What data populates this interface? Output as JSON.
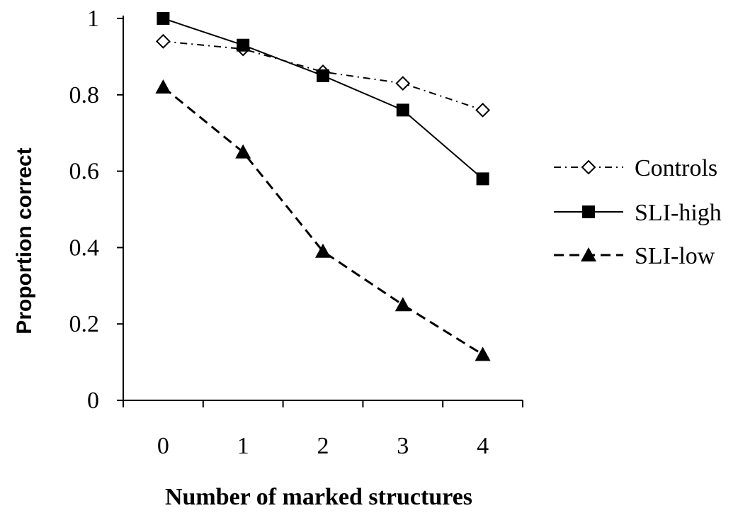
{
  "chart_data": {
    "type": "line",
    "title": "",
    "xlabel": "Number of marked structures",
    "ylabel": "Proportion correct",
    "categories": [
      "0",
      "1",
      "2",
      "3",
      "4"
    ],
    "ylim": [
      0,
      1
    ],
    "yticks": [
      "0",
      "0.2",
      "0.4",
      "0.6",
      "0.8",
      "1"
    ],
    "yticks_values": [
      0,
      0.2,
      0.4,
      0.6,
      0.8,
      1
    ],
    "grid": false,
    "legend_position": "right",
    "series": [
      {
        "name": "Controls",
        "values": [
          0.94,
          0.92,
          0.86,
          0.83,
          0.76
        ],
        "marker": "diamond-open",
        "line": "dash-dot",
        "color": "#000000"
      },
      {
        "name": "SLI-high",
        "values": [
          1.0,
          0.93,
          0.85,
          0.76,
          0.58
        ],
        "marker": "square-filled",
        "line": "solid",
        "color": "#000000"
      },
      {
        "name": "SLI-low",
        "values": [
          0.82,
          0.65,
          0.39,
          0.25,
          0.12
        ],
        "marker": "triangle-filled",
        "line": "dashed",
        "color": "#000000"
      }
    ]
  }
}
